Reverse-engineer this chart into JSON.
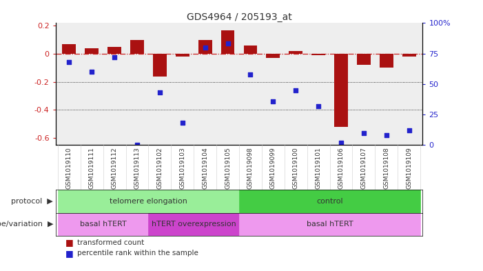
{
  "title": "GDS4964 / 205193_at",
  "samples": [
    "GSM1019110",
    "GSM1019111",
    "GSM1019112",
    "GSM1019113",
    "GSM1019102",
    "GSM1019103",
    "GSM1019104",
    "GSM1019105",
    "GSM1019098",
    "GSM1019099",
    "GSM1019100",
    "GSM1019101",
    "GSM1019106",
    "GSM1019107",
    "GSM1019108",
    "GSM1019109"
  ],
  "bar_values": [
    0.07,
    0.04,
    0.05,
    0.1,
    -0.16,
    -0.02,
    0.1,
    0.17,
    0.06,
    -0.03,
    0.02,
    -0.01,
    -0.52,
    -0.08,
    -0.1,
    -0.02
  ],
  "dot_values_pct": [
    68,
    60,
    72,
    0,
    43,
    18,
    80,
    83,
    58,
    36,
    45,
    32,
    2,
    10,
    8,
    12
  ],
  "ylim_left": [
    -0.65,
    0.22
  ],
  "ylim_right": [
    0,
    100
  ],
  "bar_color": "#aa1111",
  "dot_color": "#2222cc",
  "hline_color": "#cc2222",
  "dotted_line_color": "#000000",
  "dotted_lines": [
    -0.2,
    -0.4
  ],
  "right_ticks": [
    0,
    25,
    50,
    75,
    100
  ],
  "right_tick_labels": [
    "0",
    "25",
    "50",
    "75",
    "100%"
  ],
  "left_ticks": [
    0.2,
    0.0,
    -0.2,
    -0.4,
    -0.6
  ],
  "left_tick_labels": [
    "0.2",
    "0",
    "-0.2",
    "-0.4",
    "-0.6"
  ],
  "protocol_groups": [
    {
      "text": "telomere elongation",
      "start": 0,
      "end": 8,
      "color": "#99ee99"
    },
    {
      "text": "control",
      "start": 8,
      "end": 16,
      "color": "#44cc44"
    }
  ],
  "genotype_groups": [
    {
      "text": "basal hTERT",
      "start": 0,
      "end": 4,
      "color": "#ee99ee"
    },
    {
      "text": "hTERT overexpression",
      "start": 4,
      "end": 8,
      "color": "#cc44cc"
    },
    {
      "text": "basal hTERT",
      "start": 8,
      "end": 16,
      "color": "#ee99ee"
    }
  ],
  "legend_bar_label": "transformed count",
  "legend_dot_label": "percentile rank within the sample",
  "protocol_row_label": "protocol",
  "genotype_row_label": "genotype/variation",
  "bg_color": "#ffffff",
  "plot_bg": "#eeeeee"
}
